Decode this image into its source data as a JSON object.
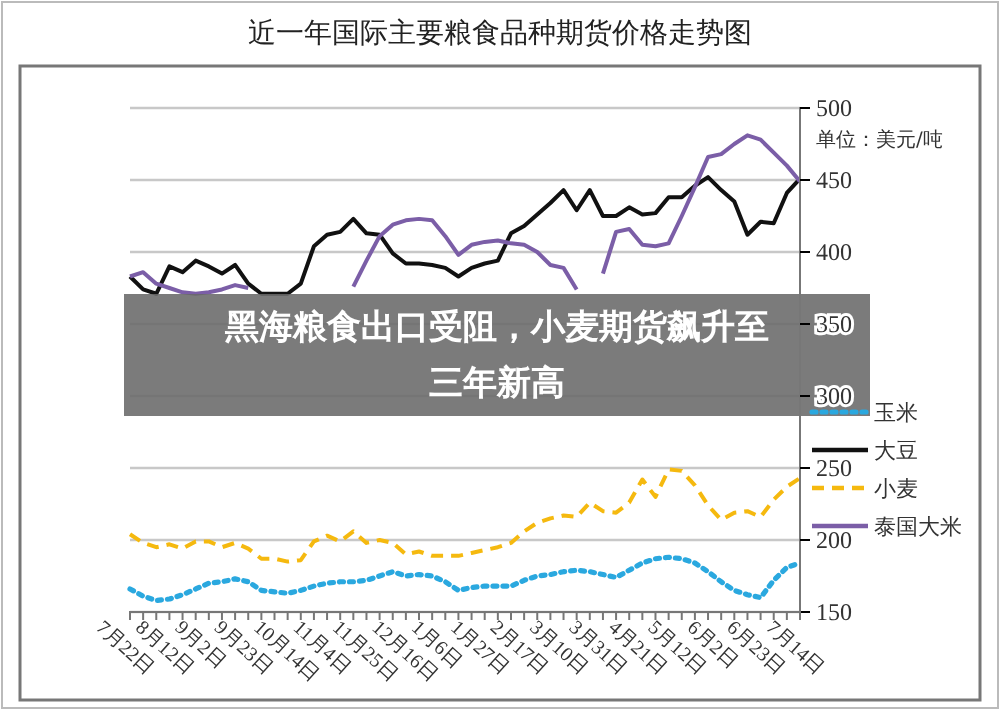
{
  "chart_data": {
    "type": "line",
    "title": "近一年国际主要粮食品种期货价格走势图",
    "ylabel": "单位：美元/吨",
    "annotations": [
      "黑海粮食出口受阻，小麦期货飙升至三年新高"
    ],
    "categories": [
      "7月22日",
      null,
      null,
      "8月12日",
      null,
      null,
      "9月2日",
      null,
      null,
      "9月23日",
      null,
      null,
      "10月14日",
      null,
      null,
      "11月4日",
      null,
      null,
      "11月25日",
      null,
      null,
      "12月16日",
      null,
      null,
      "1月6日",
      null,
      null,
      "1月27日",
      null,
      null,
      "2月17日",
      null,
      null,
      "3月10日",
      null,
      null,
      "3月31日",
      null,
      null,
      "4月21日",
      null,
      null,
      "5月12日",
      null,
      null,
      "6月2日",
      null,
      null,
      "6月23日",
      null,
      null,
      "7月14日"
    ],
    "ylim": [
      150,
      500
    ],
    "yticks": [
      150,
      200,
      250,
      300,
      350,
      400,
      450,
      500
    ],
    "grid": "y",
    "legend": "right",
    "series": [
      {
        "name": "玉米",
        "color": "#2aa8df",
        "line_style": "dotted",
        "values": [
          166,
          161,
          158,
          159,
          162,
          166,
          170,
          171,
          173,
          171,
          165,
          164,
          163,
          165,
          168,
          170,
          171,
          171,
          172,
          175,
          178,
          175,
          176,
          175,
          171,
          165,
          167,
          168,
          168,
          168,
          172,
          175,
          176,
          178,
          179,
          178,
          176,
          174,
          179,
          184,
          187,
          188,
          187,
          184,
          178,
          171,
          165,
          162,
          160,
          172,
          181,
          184
        ]
      },
      {
        "name": "大豆",
        "color": "#111111",
        "line_style": "solid",
        "values": [
          383,
          374,
          371,
          390,
          386,
          394,
          390,
          385,
          391,
          378,
          371,
          371,
          371,
          378,
          404,
          412,
          414,
          423,
          413,
          412,
          399,
          392,
          392,
          391,
          389,
          383,
          389,
          392,
          394,
          413,
          418,
          426,
          434,
          443,
          429,
          443,
          425,
          425,
          431,
          426,
          427,
          438,
          438,
          446,
          452,
          443,
          435,
          412,
          421,
          420,
          441,
          451
        ]
      },
      {
        "name": "小麦",
        "color": "#f5b90f",
        "line_style": "dashed",
        "values": [
          204,
          198,
          195,
          197,
          194,
          199,
          199,
          195,
          198,
          194,
          187,
          187,
          185,
          186,
          199,
          203,
          199,
          206,
          198,
          200,
          198,
          190,
          192,
          189,
          189,
          189,
          191,
          193,
          195,
          198,
          206,
          212,
          215,
          217,
          216,
          226,
          220,
          219,
          226,
          242,
          230,
          249,
          248,
          238,
          224,
          214,
          219,
          220,
          216,
          228,
          237,
          243
        ]
      },
      {
        "name": "泰国大米",
        "color": "#7b5ea7",
        "line_style": "solid",
        "values": [
          383,
          386,
          378,
          375,
          372,
          371,
          372,
          374,
          377,
          375,
          null,
          null,
          null,
          null,
          null,
          null,
          null,
          376,
          394,
          411,
          419,
          422,
          423,
          422,
          411,
          398,
          405,
          407,
          408,
          406,
          405,
          400,
          391,
          389,
          374,
          null,
          385,
          414,
          416,
          405,
          404,
          406,
          425,
          445,
          466,
          468,
          475,
          481,
          478,
          469,
          460,
          449
        ]
      }
    ]
  }
}
